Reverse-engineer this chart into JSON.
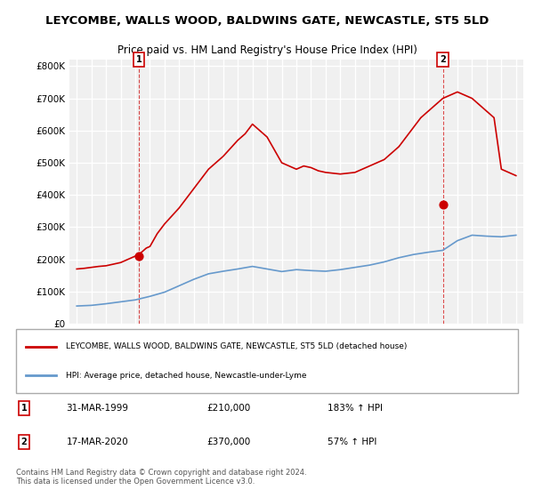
{
  "title": "LEYCOMBE, WALLS WOOD, BALDWINS GATE, NEWCASTLE, ST5 5LD",
  "subtitle": "Price paid vs. HM Land Registry's House Price Index (HPI)",
  "xlabel": "",
  "ylabel": "",
  "ylim": [
    0,
    820000
  ],
  "yticks": [
    0,
    100000,
    200000,
    300000,
    400000,
    500000,
    600000,
    700000,
    800000
  ],
  "ytick_labels": [
    "£0",
    "£100K",
    "£200K",
    "£300K",
    "£400K",
    "£500K",
    "£600K",
    "£700K",
    "£800K"
  ],
  "background_color": "#ffffff",
  "plot_bg_color": "#f0f0f0",
  "grid_color": "#ffffff",
  "hpi_color": "#6699cc",
  "price_color": "#cc0000",
  "sale1_date": "31-MAR-1999",
  "sale1_price": 210000,
  "sale1_hpi": "183%",
  "sale2_date": "17-MAR-2020",
  "sale2_price": 370000,
  "sale2_hpi": "57%",
  "legend_line1": "LEYCOMBE, WALLS WOOD, BALDWINS GATE, NEWCASTLE, ST5 5LD (detached house)",
  "legend_line2": "HPI: Average price, detached house, Newcastle-under-Lyme",
  "footer": "Contains HM Land Registry data © Crown copyright and database right 2024.\nThis data is licensed under the Open Government Licence v3.0.",
  "hpi_data": {
    "years": [
      1995,
      1996,
      1997,
      1998,
      1999,
      2000,
      2001,
      2002,
      2003,
      2004,
      2005,
      2006,
      2007,
      2008,
      2009,
      2010,
      2011,
      2012,
      2013,
      2014,
      2015,
      2016,
      2017,
      2018,
      2019,
      2020,
      2021,
      2022,
      2023,
      2024,
      2025
    ],
    "values": [
      55000,
      57000,
      62000,
      68000,
      74000,
      85000,
      98000,
      118000,
      138000,
      155000,
      163000,
      170000,
      178000,
      170000,
      162000,
      168000,
      165000,
      163000,
      168000,
      175000,
      182000,
      192000,
      205000,
      215000,
      222000,
      228000,
      258000,
      275000,
      272000,
      270000,
      275000
    ]
  },
  "price_data_x": [
    1995.0,
    1995.5,
    1996.0,
    1996.5,
    1997.0,
    1997.5,
    1998.0,
    1998.5,
    1999.0,
    1999.25,
    1999.5,
    1999.75,
    2000.0,
    2000.5,
    2001.0,
    2002.0,
    2003.0,
    2004.0,
    2005.0,
    2006.0,
    2006.5,
    2007.0,
    2007.5,
    2008.0,
    2008.25,
    2008.5,
    2009.0,
    2009.5,
    2010.0,
    2010.5,
    2011.0,
    2011.5,
    2012.0,
    2013.0,
    2014.0,
    2014.5,
    2015.0,
    2015.5,
    2016.0,
    2016.5,
    2017.0,
    2017.5,
    2018.0,
    2018.5,
    2019.0,
    2019.25,
    2019.5,
    2019.75,
    2020.0,
    2020.5,
    2021.0,
    2021.5,
    2022.0,
    2022.5,
    2023.0,
    2023.5,
    2024.0,
    2024.5,
    2025.0
  ],
  "price_data_y": [
    170000,
    172000,
    175000,
    178000,
    180000,
    185000,
    190000,
    200000,
    210000,
    215000,
    225000,
    235000,
    240000,
    280000,
    310000,
    360000,
    420000,
    480000,
    520000,
    570000,
    590000,
    620000,
    600000,
    580000,
    560000,
    540000,
    500000,
    490000,
    480000,
    490000,
    485000,
    475000,
    470000,
    465000,
    470000,
    480000,
    490000,
    500000,
    510000,
    530000,
    550000,
    580000,
    610000,
    640000,
    660000,
    670000,
    680000,
    690000,
    700000,
    710000,
    720000,
    710000,
    700000,
    680000,
    660000,
    640000,
    480000,
    470000,
    460000
  ]
}
